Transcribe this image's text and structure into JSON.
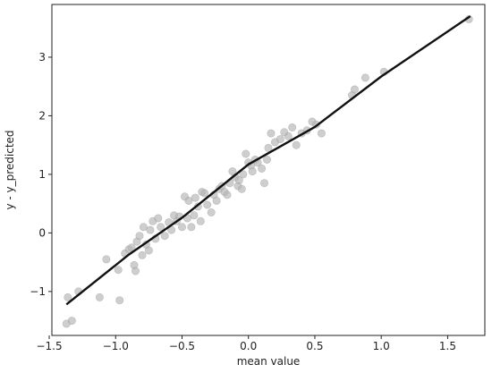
{
  "chart_data": {
    "type": "scatter",
    "xlabel": "mean value",
    "ylabel": "y - y_predicted",
    "xlim": [
      -1.48,
      1.78
    ],
    "ylim": [
      -1.75,
      3.9
    ],
    "xticks": [
      -1.5,
      -1.0,
      -0.5,
      0.0,
      0.5,
      1.0,
      1.5
    ],
    "xtick_labels": [
      "−1.5",
      "−1.0",
      "−0.5",
      "0.0",
      "0.5",
      "1.0",
      "1.5"
    ],
    "yticks": [
      -1,
      0,
      1,
      2,
      3
    ],
    "ytick_labels": [
      "−1",
      "0",
      "1",
      "2",
      "3"
    ],
    "grid": false,
    "legend": "none",
    "colors": {
      "points": "#b4b4b4",
      "line": "#111111",
      "axes": "#222222"
    },
    "series": [
      {
        "kind": "points",
        "points": [
          [
            -1.37,
            -1.55
          ],
          [
            -1.36,
            -1.1
          ],
          [
            -1.33,
            -1.5
          ],
          [
            -1.28,
            -1.0
          ],
          [
            -1.12,
            -1.1
          ],
          [
            -1.07,
            -0.45
          ],
          [
            -0.98,
            -0.63
          ],
          [
            -0.97,
            -1.15
          ],
          [
            -0.93,
            -0.35
          ],
          [
            -0.9,
            -0.28
          ],
          [
            -0.88,
            -0.25
          ],
          [
            -0.86,
            -0.55
          ],
          [
            -0.85,
            -0.65
          ],
          [
            -0.84,
            -0.15
          ],
          [
            -0.82,
            -0.05
          ],
          [
            -0.8,
            -0.38
          ],
          [
            -0.79,
            0.1
          ],
          [
            -0.77,
            -0.2
          ],
          [
            -0.75,
            -0.3
          ],
          [
            -0.74,
            0.05
          ],
          [
            -0.72,
            0.2
          ],
          [
            -0.7,
            -0.1
          ],
          [
            -0.68,
            0.25
          ],
          [
            -0.66,
            0.1
          ],
          [
            -0.63,
            -0.05
          ],
          [
            -0.6,
            0.18
          ],
          [
            -0.58,
            0.05
          ],
          [
            -0.56,
            0.3
          ],
          [
            -0.54,
            0.2
          ],
          [
            -0.52,
            0.28
          ],
          [
            -0.5,
            0.1
          ],
          [
            -0.48,
            0.62
          ],
          [
            -0.46,
            0.25
          ],
          [
            -0.45,
            0.55
          ],
          [
            -0.43,
            0.1
          ],
          [
            -0.41,
            0.3
          ],
          [
            -0.4,
            0.6
          ],
          [
            -0.38,
            0.45
          ],
          [
            -0.36,
            0.2
          ],
          [
            -0.35,
            0.7
          ],
          [
            -0.33,
            0.68
          ],
          [
            -0.31,
            0.48
          ],
          [
            -0.28,
            0.35
          ],
          [
            -0.26,
            0.65
          ],
          [
            -0.24,
            0.55
          ],
          [
            -0.22,
            0.75
          ],
          [
            -0.2,
            0.8
          ],
          [
            -0.18,
            0.7
          ],
          [
            -0.16,
            0.65
          ],
          [
            -0.14,
            0.85
          ],
          [
            -0.12,
            1.05
          ],
          [
            -0.1,
            0.95
          ],
          [
            -0.08,
            0.8
          ],
          [
            -0.07,
            0.9
          ],
          [
            -0.05,
            0.75
          ],
          [
            -0.04,
            1.0
          ],
          [
            -0.02,
            1.35
          ],
          [
            0.0,
            1.2
          ],
          [
            0.02,
            1.15
          ],
          [
            0.03,
            1.05
          ],
          [
            0.05,
            1.25
          ],
          [
            0.07,
            1.2
          ],
          [
            0.1,
            1.1
          ],
          [
            0.12,
            0.85
          ],
          [
            0.14,
            1.25
          ],
          [
            0.15,
            1.45
          ],
          [
            0.17,
            1.7
          ],
          [
            0.2,
            1.55
          ],
          [
            0.24,
            1.6
          ],
          [
            0.27,
            1.72
          ],
          [
            0.3,
            1.65
          ],
          [
            0.33,
            1.8
          ],
          [
            0.36,
            1.5
          ],
          [
            0.4,
            1.7
          ],
          [
            0.44,
            1.75
          ],
          [
            0.48,
            1.9
          ],
          [
            0.51,
            1.85
          ],
          [
            0.55,
            1.7
          ],
          [
            0.78,
            2.35
          ],
          [
            0.8,
            2.45
          ],
          [
            0.88,
            2.65
          ],
          [
            1.02,
            2.75
          ],
          [
            1.66,
            3.65
          ]
        ]
      },
      {
        "kind": "line",
        "points": [
          [
            -1.37,
            -1.22
          ],
          [
            -0.9,
            -0.37
          ],
          [
            -0.5,
            0.26
          ],
          [
            0.0,
            1.17
          ],
          [
            0.5,
            1.81
          ],
          [
            1.0,
            2.67
          ],
          [
            1.67,
            3.7
          ]
        ]
      }
    ]
  }
}
